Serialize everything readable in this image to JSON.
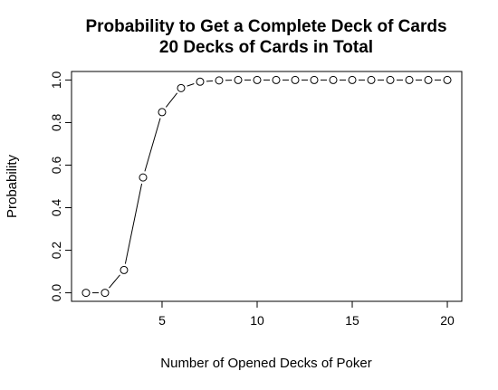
{
  "chart_data": {
    "type": "line",
    "title": [
      "Probability to Get a Complete Deck of Cards",
      "20 Decks of Cards in Total"
    ],
    "xlabel": "Number of Opened Decks of Poker",
    "ylabel": "Probability",
    "xlim": [
      0.24,
      20.76
    ],
    "ylim": [
      -0.04,
      1.04
    ],
    "x_ticks": [
      5,
      10,
      15,
      20
    ],
    "y_ticks": [
      0.0,
      0.2,
      0.4,
      0.6,
      0.8,
      1.0
    ],
    "x_tick_labels": [
      "5",
      "10",
      "15",
      "20"
    ],
    "y_tick_labels": [
      "0.0",
      "0.2",
      "0.4",
      "0.6",
      "0.8",
      "1.0"
    ],
    "grid": false,
    "legend": "none",
    "marker": "open-circle",
    "line_style": "segments-between-points",
    "color": "#000000",
    "x": [
      1,
      2,
      3,
      4,
      5,
      6,
      7,
      8,
      9,
      10,
      11,
      12,
      13,
      14,
      15,
      16,
      17,
      18,
      19,
      20
    ],
    "y": [
      0.0,
      0.0,
      0.107,
      0.542,
      0.849,
      0.962,
      0.992,
      0.998,
      1.0,
      1.0,
      1.0,
      1.0,
      1.0,
      1.0,
      1.0,
      1.0,
      1.0,
      1.0,
      1.0,
      1.0
    ]
  }
}
